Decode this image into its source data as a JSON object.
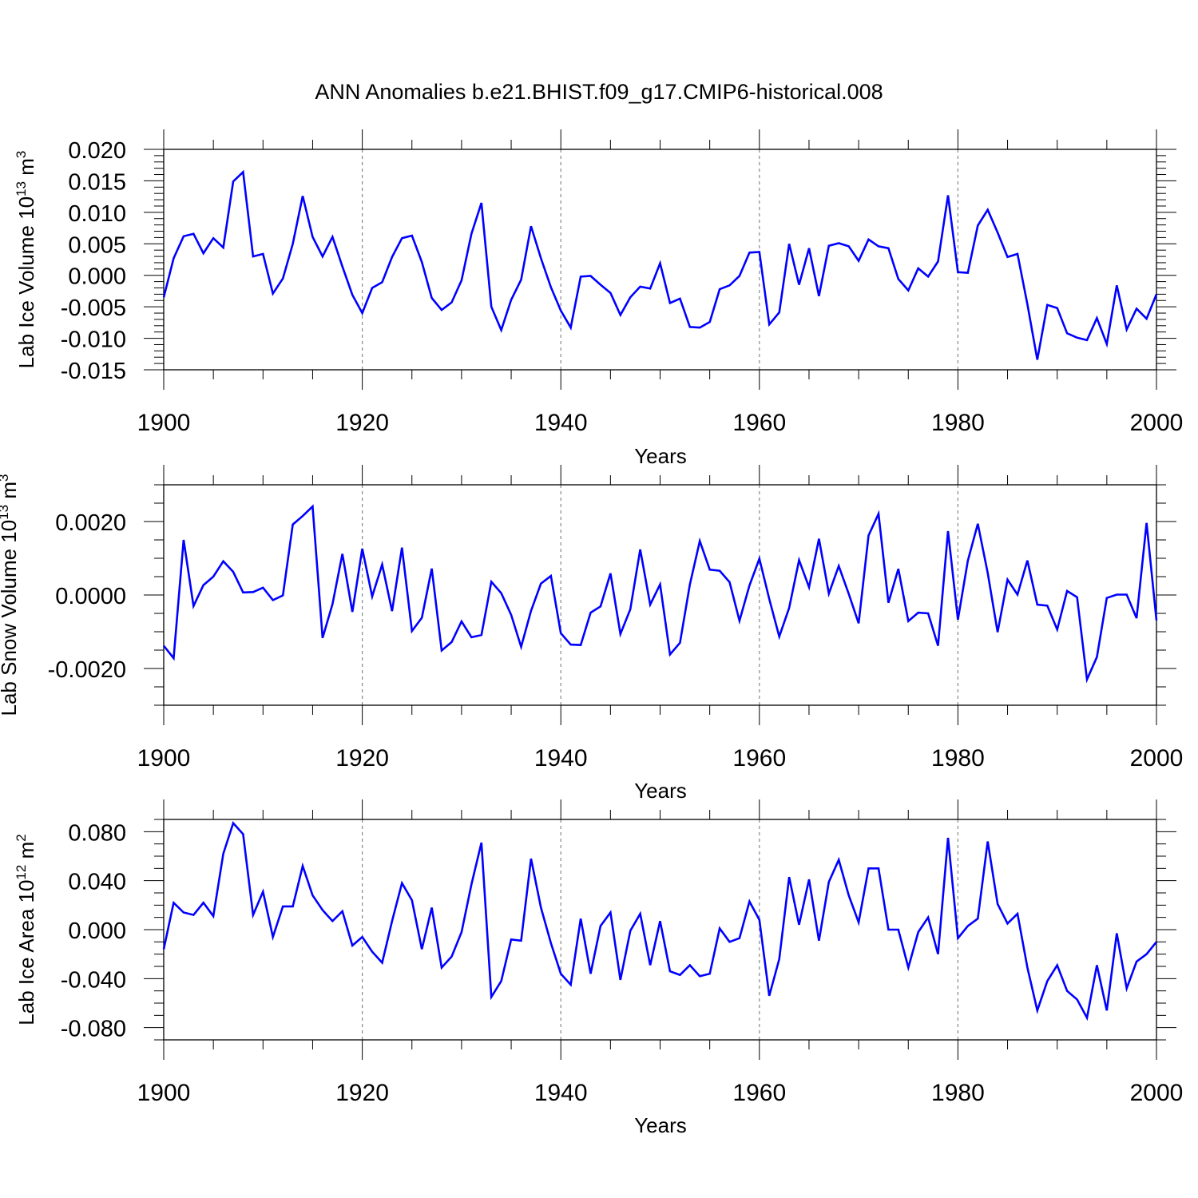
{
  "title": "ANN Anomalies b.e21.BHIST.f09_g17.CMIP6-historical.008",
  "line_color": "#0000ff",
  "chart_data": [
    {
      "type": "line",
      "title": "ANN Anomalies b.e21.BHIST.f09_g17.CMIP6-historical.008",
      "ylabel_main": "Lab Ice Volume 10",
      "ylabel_sup": "13",
      "ylabel_unit": " m",
      "ylabel_unit_sup": "3",
      "xlabel": "Years",
      "xlim": [
        1900,
        2000
      ],
      "xticks": [
        1900,
        1920,
        1940,
        1960,
        1980,
        2000
      ],
      "ylim": [
        -0.015,
        0.02
      ],
      "yticks": [
        -0.015,
        -0.01,
        -0.005,
        0.0,
        0.005,
        0.01,
        0.015,
        0.02
      ],
      "ytick_labels": [
        "-0.015",
        "-0.010",
        "-0.005",
        "0.000",
        "0.005",
        "0.010",
        "0.015",
        "0.020"
      ],
      "x_start": 1900,
      "values": [
        -0.0035,
        0.0027,
        0.0062,
        0.0066,
        0.0035,
        0.0059,
        0.0044,
        0.0149,
        0.0164,
        0.003,
        0.0034,
        -0.0029,
        -0.0005,
        0.005,
        0.0126,
        0.0061,
        0.003,
        0.0061,
        0.0014,
        -0.0031,
        -0.006,
        -0.002,
        -0.0011,
        0.0029,
        0.0059,
        0.0063,
        0.0021,
        -0.0036,
        -0.0055,
        -0.0043,
        -0.0008,
        0.0066,
        0.0115,
        -0.005,
        -0.0087,
        -0.0039,
        -0.0007,
        0.0078,
        0.0027,
        -0.0019,
        -0.0056,
        -0.0083,
        -0.0002,
        -0.0001,
        -0.0015,
        -0.0028,
        -0.0063,
        -0.0035,
        -0.0018,
        -0.0021,
        0.0019,
        -0.0044,
        -0.0037,
        -0.0082,
        -0.0083,
        -0.0074,
        -0.0022,
        -0.0016,
        -0.0001,
        0.0036,
        0.0037,
        -0.0078,
        -0.0059,
        0.005,
        -0.0015,
        0.0043,
        -0.0033,
        0.0047,
        0.0051,
        0.0046,
        0.0023,
        0.0057,
        0.0046,
        0.0043,
        -0.0006,
        -0.0024,
        0.0011,
        -0.0002,
        0.0022,
        0.0127,
        0.0005,
        0.0004,
        0.0079,
        0.0104,
        0.0068,
        0.0029,
        0.0034,
        -0.0046,
        -0.0134,
        -0.0047,
        -0.0052,
        -0.0092,
        -0.0099,
        -0.0103,
        -0.0068,
        -0.0109,
        -0.0016,
        -0.0086,
        -0.0053,
        -0.0069,
        -0.003
      ]
    },
    {
      "type": "line",
      "ylabel_main": "Lab Snow Volume 10",
      "ylabel_sup": "13",
      "ylabel_unit": " m",
      "ylabel_unit_sup": "3",
      "xlabel": "Years",
      "xlim": [
        1900,
        2000
      ],
      "xticks": [
        1900,
        1920,
        1940,
        1960,
        1980,
        2000
      ],
      "ylim": [
        -0.003,
        0.003
      ],
      "yticks": [
        -0.002,
        0.0,
        0.002
      ],
      "ytick_labels": [
        "-0.0020",
        "0.0000",
        "0.0020"
      ],
      "x_start": 1900,
      "values": [
        -0.00138,
        -0.00172,
        0.0015,
        -0.0003,
        0.00027,
        0.0005,
        0.00092,
        0.00063,
        7e-05,
        8e-05,
        0.0002,
        -0.00014,
        -1e-05,
        0.00192,
        0.00215,
        0.00241,
        -0.00117,
        -0.00025,
        0.00112,
        -0.00046,
        0.00126,
        -4e-05,
        0.00083,
        -0.00044,
        0.00129,
        -0.00098,
        -0.00062,
        0.00072,
        -0.00151,
        -0.00128,
        -0.00072,
        -0.00115,
        -0.00109,
        0.00036,
        5e-05,
        -0.00054,
        -0.00141,
        -0.00043,
        0.00031,
        0.00052,
        -0.00104,
        -0.00135,
        -0.00136,
        -0.00048,
        -0.00031,
        0.00059,
        -0.00106,
        -0.00039,
        0.00124,
        -0.00026,
        0.00029,
        -0.00162,
        -0.0013,
        0.00029,
        0.00147,
        0.00069,
        0.00066,
        0.00035,
        -0.0007,
        0.00026,
        0.00099,
        -0.00011,
        -0.00113,
        -0.00035,
        0.00095,
        0.00021,
        0.00153,
        4e-05,
        0.00079,
        3e-05,
        -0.00077,
        0.00162,
        0.00221,
        -0.00021,
        0.00071,
        -0.00071,
        -0.00048,
        -0.0005,
        -0.00138,
        0.00174,
        -0.00067,
        0.00093,
        0.00194,
        0.0006,
        -0.00101,
        0.00042,
        1e-05,
        0.00094,
        -0.00026,
        -0.00029,
        -0.00094,
        0.00011,
        -6e-05,
        -0.0023,
        -0.00169,
        -8e-05,
        1e-05,
        1e-05,
        -0.00063,
        0.00196,
        -0.00069
      ]
    },
    {
      "type": "line",
      "ylabel_main": "Lab Ice Area 10",
      "ylabel_sup": "12",
      "ylabel_unit": " m",
      "ylabel_unit_sup": "2",
      "xlabel": "Years",
      "xlim": [
        1900,
        2000
      ],
      "xticks": [
        1900,
        1920,
        1940,
        1960,
        1980,
        2000
      ],
      "ylim": [
        -0.09,
        0.09
      ],
      "yticks": [
        -0.08,
        -0.04,
        0.0,
        0.04,
        0.08
      ],
      "ytick_labels": [
        "-0.080",
        "-0.040",
        "0.000",
        "0.040",
        "0.080"
      ],
      "x_start": 1900,
      "values": [
        -0.016,
        0.022,
        0.014,
        0.012,
        0.022,
        0.011,
        0.062,
        0.087,
        0.078,
        0.012,
        0.031,
        -0.006,
        0.019,
        0.019,
        0.052,
        0.028,
        0.016,
        0.007,
        0.015,
        -0.013,
        -0.006,
        -0.018,
        -0.027,
        0.007,
        0.038,
        0.024,
        -0.016,
        0.018,
        -0.031,
        -0.022,
        -0.002,
        0.037,
        0.071,
        -0.055,
        -0.042,
        -0.008,
        -0.009,
        0.058,
        0.018,
        -0.011,
        -0.036,
        -0.045,
        0.009,
        -0.036,
        0.003,
        0.014,
        -0.041,
        -0.001,
        0.013,
        -0.029,
        0.007,
        -0.034,
        -0.037,
        -0.029,
        -0.038,
        -0.036,
        0.001,
        -0.01,
        -0.007,
        0.023,
        0.008,
        -0.054,
        -0.024,
        0.043,
        0.004,
        0.041,
        -0.009,
        0.039,
        0.057,
        0.028,
        0.006,
        0.05,
        0.05,
        0.0,
        0.0,
        -0.031,
        -0.002,
        0.01,
        -0.02,
        0.075,
        -0.007,
        0.003,
        0.009,
        0.072,
        0.021,
        0.005,
        0.013,
        -0.031,
        -0.066,
        -0.042,
        -0.029,
        -0.05,
        -0.057,
        -0.072,
        -0.029,
        -0.066,
        -0.003,
        -0.048,
        -0.026,
        -0.02,
        -0.01
      ]
    }
  ]
}
